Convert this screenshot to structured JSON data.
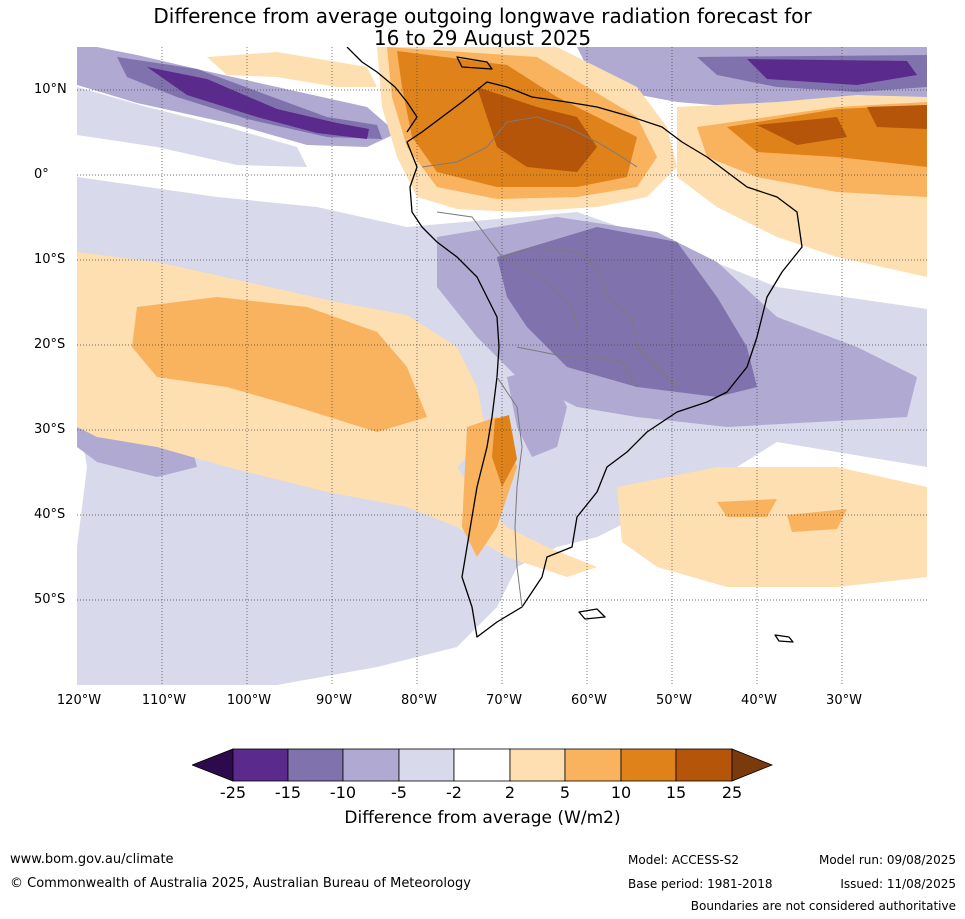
{
  "title_line1": "Difference from average outgoing longwave radiation forecast for",
  "title_line2": "16 to 29 August 2025",
  "map": {
    "region": "South America",
    "lon_range": [
      -120,
      -20
    ],
    "lat_range": [
      -60,
      15
    ],
    "lat_labels": [
      "10°N",
      "0°",
      "10°S",
      "20°S",
      "30°S",
      "40°S",
      "50°S"
    ],
    "lon_labels": [
      "120°W",
      "110°W",
      "100°W",
      "90°W",
      "80°W",
      "70°W",
      "60°W",
      "50°W",
      "40°W",
      "30°W"
    ]
  },
  "legend": {
    "label": "Difference from average (W/m2)",
    "ticks": [
      "-25",
      "-15",
      "-10",
      "-5",
      "-2",
      "2",
      "5",
      "10",
      "15",
      "25"
    ],
    "colors": [
      "#2d0a4e",
      "#5a2a8c",
      "#8072ac",
      "#b0a9d1",
      "#d8d9ea",
      "#ffffff",
      "#fddfb1",
      "#f9b25e",
      "#e0821a",
      "#b45509",
      "#7a3a0b"
    ]
  },
  "footer": {
    "website": "www.bom.gov.au/climate",
    "copyright": "© Commonwealth of Australia 2025, Australian Bureau of Meteorology",
    "model": "Model: ACCESS-S2",
    "base_period": "Base period: 1981-2018",
    "model_run": "Model run: 09/08/2025",
    "issued": "Issued: 11/08/2025",
    "disclaimer": "Boundaries are not considered authoritative"
  }
}
